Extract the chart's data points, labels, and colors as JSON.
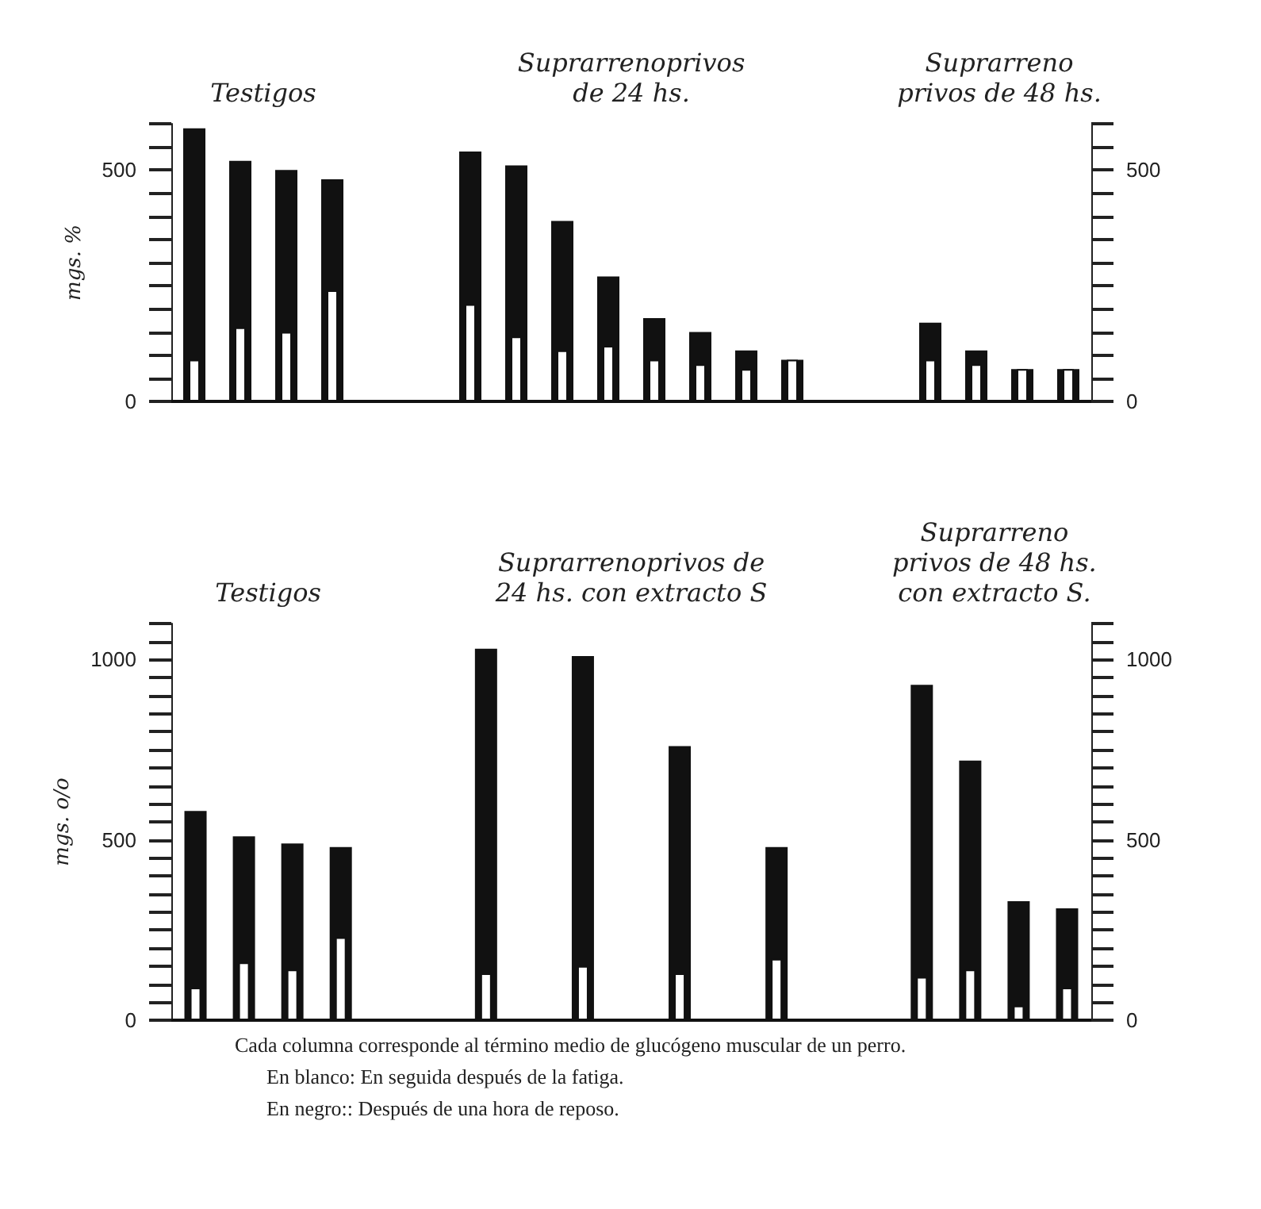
{
  "chart_data": [
    {
      "type": "bar",
      "categories": [
        null,
        null,
        null,
        null,
        null,
        null,
        null,
        null,
        null,
        null,
        null,
        null,
        null,
        null,
        null,
        null,
        null,
        null,
        null,
        null
      ],
      "series": [
        {
          "color": "#111111",
          "values": [
            590,
            520,
            500,
            480,
            null,
            null,
            540,
            510,
            390,
            270,
            180,
            150,
            110,
            90,
            null,
            null,
            170,
            110,
            70,
            70
          ]
        },
        {
          "color": "#ffffff",
          "values": [
            90,
            160,
            150,
            240,
            null,
            null,
            210,
            140,
            110,
            120,
            90,
            80,
            70,
            90,
            null,
            null,
            90,
            80,
            70,
            70
          ]
        }
      ],
      "ylabel": "mgs. %",
      "ylim": [
        0,
        600
      ],
      "yticks": [
        0,
        {
          "value": 50,
          "label": null
        },
        {
          "value": 100,
          "label": null
        },
        {
          "value": 150,
          "label": null
        },
        {
          "value": 200,
          "label": null
        },
        {
          "value": 250,
          "label": null
        },
        {
          "value": 300,
          "label": null
        },
        {
          "value": 350,
          "label": null
        },
        {
          "value": 400,
          "label": null
        },
        {
          "value": 450,
          "label": null
        },
        500,
        {
          "value": 550,
          "label": null
        },
        {
          "value": 600,
          "label": null
        }
      ],
      "y2lim": [
        0,
        600
      ],
      "y2ticks": [
        0,
        {
          "value": 50,
          "label": null
        },
        {
          "value": 100,
          "label": null
        },
        {
          "value": 150,
          "label": null
        },
        {
          "value": 200,
          "label": null
        },
        {
          "value": 250,
          "label": null
        },
        {
          "value": 300,
          "label": null
        },
        {
          "value": 350,
          "label": null
        },
        {
          "value": 400,
          "label": null
        },
        {
          "value": 450,
          "label": null
        },
        500,
        {
          "value": 550,
          "label": null
        },
        {
          "value": 600,
          "label": null
        }
      ],
      "annotations": [
        "Testigos",
        "Suprarrenoprivos\nde 24 hs.",
        "Suprarreno\nprivos de 48 hs."
      ]
    },
    {
      "type": "bar",
      "categories": [
        null,
        null,
        null,
        null,
        null,
        null,
        null,
        null,
        null,
        null,
        null,
        null,
        null,
        null,
        null,
        null,
        null,
        null,
        null
      ],
      "series": [
        {
          "color": "#111111",
          "values": [
            580,
            510,
            490,
            480,
            null,
            null,
            1030,
            null,
            1010,
            null,
            760,
            null,
            480,
            null,
            null,
            930,
            720,
            330,
            310
          ]
        },
        {
          "color": "#ffffff",
          "values": [
            90,
            160,
            140,
            230,
            null,
            null,
            130,
            null,
            150,
            null,
            130,
            null,
            170,
            null,
            null,
            120,
            140,
            40,
            90
          ]
        }
      ],
      "ylabel": "mgs. o/o",
      "ylim": [
        0,
        1100
      ],
      "yticks": [
        0,
        {
          "value": 50,
          "label": null
        },
        {
          "value": 100,
          "label": null
        },
        {
          "value": 150,
          "label": null
        },
        {
          "value": 200,
          "label": null
        },
        {
          "value": 250,
          "label": null
        },
        {
          "value": 300,
          "label": null
        },
        {
          "value": 350,
          "label": null
        },
        {
          "value": 400,
          "label": null
        },
        {
          "value": 450,
          "label": null
        },
        500,
        {
          "value": 550,
          "label": null
        },
        {
          "value": 600,
          "label": null
        },
        {
          "value": 650,
          "label": null
        },
        {
          "value": 700,
          "label": null
        },
        {
          "value": 750,
          "label": null
        },
        {
          "value": 800,
          "label": null
        },
        {
          "value": 850,
          "label": null
        },
        {
          "value": 900,
          "label": null
        },
        {
          "value": 950,
          "label": null
        },
        1000,
        {
          "value": 1050,
          "label": null
        },
        {
          "value": 1100,
          "label": null
        }
      ],
      "y2lim": [
        0,
        1100
      ],
      "y2ticks": [
        0,
        {
          "value": 50,
          "label": null
        },
        {
          "value": 100,
          "label": null
        },
        {
          "value": 150,
          "label": null
        },
        {
          "value": 200,
          "label": null
        },
        {
          "value": 250,
          "label": null
        },
        {
          "value": 300,
          "label": null
        },
        {
          "value": 350,
          "label": null
        },
        {
          "value": 400,
          "label": null
        },
        {
          "value": 450,
          "label": null
        },
        500,
        {
          "value": 550,
          "label": null
        },
        {
          "value": 600,
          "label": null
        },
        {
          "value": 650,
          "label": null
        },
        {
          "value": 700,
          "label": null
        },
        {
          "value": 750,
          "label": null
        },
        {
          "value": 800,
          "label": null
        },
        {
          "value": 850,
          "label": null
        },
        {
          "value": 900,
          "label": null
        },
        {
          "value": 950,
          "label": null
        },
        1000,
        {
          "value": 1050,
          "label": null
        },
        {
          "value": 1100,
          "label": null
        }
      ],
      "annotations": [
        "Testigos",
        "Suprarrenoprivos de\n24 hs. con extracto S",
        "Suprarreno\nprivos de 48 hs.\ncon extracto S.",
        "Cada columna corresponde al término medio de glucógeno muscular de un perro.",
        "En blanco: En seguida después de la fatiga.",
        "En negro:: Después de una hora de reposo."
      ]
    }
  ]
}
